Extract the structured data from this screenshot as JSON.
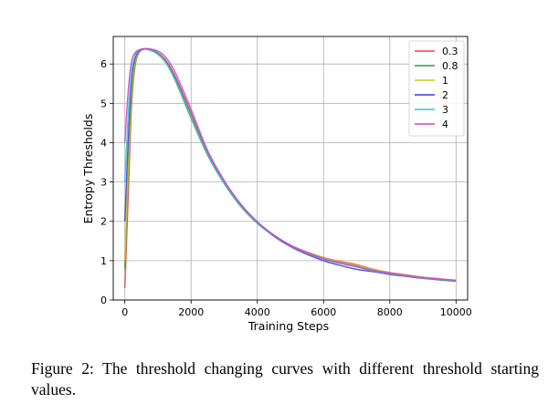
{
  "chart_data": {
    "type": "line",
    "title": "",
    "xlabel": "Training Steps",
    "ylabel": "Entropy Thresholds",
    "xlim": [
      -350,
      10350
    ],
    "ylim": [
      0,
      6.7
    ],
    "xticks": [
      0,
      2000,
      4000,
      6000,
      8000,
      10000
    ],
    "yticks": [
      0,
      1,
      2,
      3,
      4,
      5,
      6
    ],
    "grid": true,
    "legend": "top-right",
    "series": [
      {
        "name": "0.3",
        "color": "#e8474b",
        "x": [
          0,
          100,
          200,
          300,
          400,
          500,
          600,
          700,
          900,
          1100,
          1300,
          1500,
          1700,
          2000,
          2500,
          3000,
          3500,
          4000,
          4500,
          5000,
          5500,
          6000,
          6500,
          7000,
          7500,
          8000,
          8500,
          9000,
          9500,
          10000
        ],
        "y": [
          0.3,
          2.6,
          4.9,
          5.9,
          6.25,
          6.35,
          6.38,
          6.38,
          6.33,
          6.22,
          6.02,
          5.72,
          5.35,
          4.75,
          3.75,
          3.0,
          2.42,
          1.98,
          1.65,
          1.4,
          1.22,
          1.08,
          0.98,
          0.9,
          0.78,
          0.7,
          0.64,
          0.58,
          0.54,
          0.5
        ]
      },
      {
        "name": "0.8",
        "color": "#3a9a3a",
        "x": [
          0,
          100,
          200,
          300,
          400,
          500,
          600,
          700,
          900,
          1100,
          1300,
          1500,
          1700,
          2000,
          2500,
          3000,
          3500,
          4000,
          4500,
          5000,
          5500,
          6000,
          6500,
          7000,
          7500,
          8000,
          8500,
          9000,
          9500,
          10000
        ],
        "y": [
          0.8,
          3.1,
          5.1,
          5.95,
          6.27,
          6.36,
          6.38,
          6.37,
          6.3,
          6.17,
          5.95,
          5.62,
          5.23,
          4.62,
          3.68,
          2.96,
          2.38,
          1.95,
          1.63,
          1.38,
          1.2,
          1.06,
          0.95,
          0.86,
          0.76,
          0.68,
          0.62,
          0.57,
          0.53,
          0.49
        ]
      },
      {
        "name": "1",
        "color": "#c8c81e",
        "x": [
          0,
          100,
          200,
          300,
          400,
          500,
          600,
          700,
          900,
          1100,
          1300,
          1500,
          1700,
          2000,
          2500,
          3000,
          3500,
          4000,
          4500,
          5000,
          5500,
          6000,
          6500,
          7000,
          7500,
          8000,
          8500,
          9000,
          9500,
          10000
        ],
        "y": [
          1.0,
          3.3,
          5.2,
          6.0,
          6.28,
          6.36,
          6.38,
          6.37,
          6.31,
          6.18,
          5.96,
          5.64,
          5.26,
          4.66,
          3.7,
          2.98,
          2.4,
          1.96,
          1.64,
          1.39,
          1.21,
          1.07,
          0.96,
          0.88,
          0.77,
          0.69,
          0.63,
          0.58,
          0.53,
          0.5
        ]
      },
      {
        "name": "2",
        "color": "#3b3bd4",
        "x": [
          0,
          100,
          200,
          300,
          400,
          500,
          600,
          700,
          900,
          1100,
          1300,
          1500,
          1700,
          2000,
          2500,
          3000,
          3500,
          4000,
          4500,
          5000,
          5500,
          6000,
          6500,
          7000,
          7500,
          8000,
          8500,
          9000,
          9500,
          10000
        ],
        "y": [
          2.0,
          4.0,
          5.55,
          6.12,
          6.3,
          6.37,
          6.38,
          6.37,
          6.32,
          6.2,
          5.99,
          5.68,
          5.3,
          4.7,
          3.72,
          2.99,
          2.41,
          1.97,
          1.62,
          1.36,
          1.16,
          1.0,
          0.88,
          0.78,
          0.72,
          0.65,
          0.6,
          0.55,
          0.51,
          0.48
        ]
      },
      {
        "name": "3",
        "color": "#35c8c8",
        "x": [
          0,
          100,
          200,
          300,
          400,
          500,
          600,
          700,
          900,
          1100,
          1300,
          1500,
          1700,
          2000,
          2500,
          3000,
          3500,
          4000,
          4500,
          5000,
          5500,
          6000,
          6500,
          7000,
          7500,
          8000,
          8500,
          9000,
          9500,
          10000
        ],
        "y": [
          3.0,
          4.7,
          5.8,
          6.2,
          6.33,
          6.37,
          6.38,
          6.37,
          6.31,
          6.19,
          5.97,
          5.65,
          5.27,
          4.68,
          3.71,
          2.98,
          2.4,
          1.96,
          1.63,
          1.38,
          1.19,
          1.04,
          0.93,
          0.84,
          0.74,
          0.67,
          0.61,
          0.56,
          0.52,
          0.49
        ]
      },
      {
        "name": "4",
        "color": "#d23fd2",
        "x": [
          0,
          100,
          200,
          300,
          400,
          500,
          600,
          700,
          900,
          1100,
          1300,
          1500,
          1700,
          2000,
          2500,
          3000,
          3500,
          4000,
          4500,
          5000,
          5500,
          6000,
          6500,
          7000,
          7500,
          8000,
          8500,
          9000,
          9500,
          10000
        ],
        "y": [
          4.0,
          5.3,
          6.05,
          6.28,
          6.35,
          6.38,
          6.39,
          6.39,
          6.36,
          6.28,
          6.1,
          5.82,
          5.45,
          4.85,
          3.8,
          3.04,
          2.44,
          1.99,
          1.65,
          1.39,
          1.2,
          1.05,
          0.94,
          0.85,
          0.75,
          0.68,
          0.62,
          0.57,
          0.53,
          0.5
        ]
      }
    ]
  },
  "caption": "Figure 2:  The threshold changing curves with different threshold starting values."
}
